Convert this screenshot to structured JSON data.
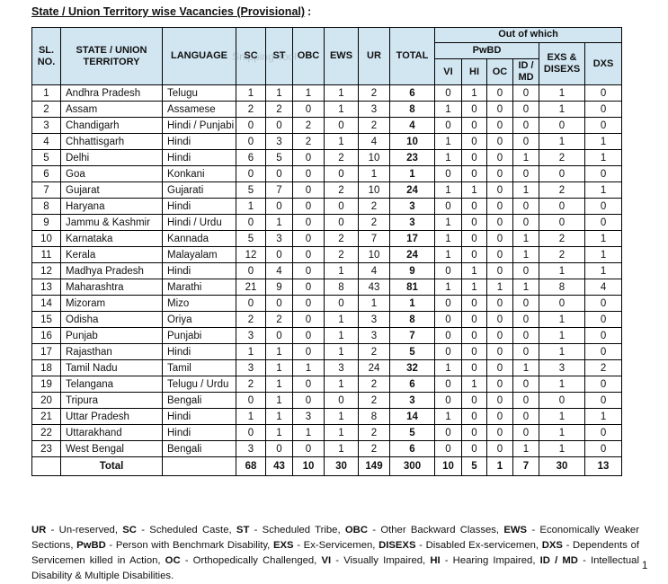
{
  "page": {
    "title": "State / Union Territory wise Vacancies (Provisional)",
    "title_suffix": ":",
    "page_number": "1",
    "watermark_text": "Snipping Tool"
  },
  "table": {
    "headers": {
      "sl_no": "SL. NO.",
      "state": "STATE / UNION TERRITORY",
      "language": "LANGUAGE",
      "sc": "SC",
      "st": "ST",
      "obc": "OBC",
      "ews": "EWS",
      "ur": "UR",
      "total": "TOTAL",
      "out_of_which": "Out of which",
      "pwbd": "PwBD",
      "vi": "VI",
      "hi": "HI",
      "oc": "OC",
      "id_md": "ID / MD",
      "exs_disexs": "EXS & DISEXS",
      "dxs": "DXS"
    },
    "rows": [
      [
        "1",
        "Andhra Pradesh",
        "Telugu",
        "1",
        "1",
        "1",
        "1",
        "2",
        "6",
        "0",
        "1",
        "0",
        "0",
        "1",
        "0"
      ],
      [
        "2",
        "Assam",
        "Assamese",
        "2",
        "2",
        "0",
        "1",
        "3",
        "8",
        "1",
        "0",
        "0",
        "0",
        "1",
        "0"
      ],
      [
        "3",
        "Chandigarh",
        "Hindi / Punjabi",
        "0",
        "0",
        "2",
        "0",
        "2",
        "4",
        "0",
        "0",
        "0",
        "0",
        "0",
        "0"
      ],
      [
        "4",
        "Chhattisgarh",
        "Hindi",
        "0",
        "3",
        "2",
        "1",
        "4",
        "10",
        "1",
        "0",
        "0",
        "0",
        "1",
        "1"
      ],
      [
        "5",
        "Delhi",
        "Hindi",
        "6",
        "5",
        "0",
        "2",
        "10",
        "23",
        "1",
        "0",
        "0",
        "1",
        "2",
        "1"
      ],
      [
        "6",
        "Goa",
        "Konkani",
        "0",
        "0",
        "0",
        "0",
        "1",
        "1",
        "0",
        "0",
        "0",
        "0",
        "0",
        "0"
      ],
      [
        "7",
        "Gujarat",
        "Gujarati",
        "5",
        "7",
        "0",
        "2",
        "10",
        "24",
        "1",
        "1",
        "0",
        "1",
        "2",
        "1"
      ],
      [
        "8",
        "Haryana",
        "Hindi",
        "1",
        "0",
        "0",
        "0",
        "2",
        "3",
        "0",
        "0",
        "0",
        "0",
        "0",
        "0"
      ],
      [
        "9",
        "Jammu & Kashmir",
        "Hindi / Urdu",
        "0",
        "1",
        "0",
        "0",
        "2",
        "3",
        "1",
        "0",
        "0",
        "0",
        "0",
        "0"
      ],
      [
        "10",
        "Karnataka",
        "Kannada",
        "5",
        "3",
        "0",
        "2",
        "7",
        "17",
        "1",
        "0",
        "0",
        "1",
        "2",
        "1"
      ],
      [
        "11",
        "Kerala",
        "Malayalam",
        "12",
        "0",
        "0",
        "2",
        "10",
        "24",
        "1",
        "0",
        "0",
        "1",
        "2",
        "1"
      ],
      [
        "12",
        "Madhya Pradesh",
        "Hindi",
        "0",
        "4",
        "0",
        "1",
        "4",
        "9",
        "0",
        "1",
        "0",
        "0",
        "1",
        "1"
      ],
      [
        "13",
        "Maharashtra",
        "Marathi",
        "21",
        "9",
        "0",
        "8",
        "43",
        "81",
        "1",
        "1",
        "1",
        "1",
        "8",
        "4"
      ],
      [
        "14",
        "Mizoram",
        "Mizo",
        "0",
        "0",
        "0",
        "0",
        "1",
        "1",
        "0",
        "0",
        "0",
        "0",
        "0",
        "0"
      ],
      [
        "15",
        "Odisha",
        "Oriya",
        "2",
        "2",
        "0",
        "1",
        "3",
        "8",
        "0",
        "0",
        "0",
        "0",
        "1",
        "0"
      ],
      [
        "16",
        "Punjab",
        "Punjabi",
        "3",
        "0",
        "0",
        "1",
        "3",
        "7",
        "0",
        "0",
        "0",
        "0",
        "1",
        "0"
      ],
      [
        "17",
        "Rajasthan",
        "Hindi",
        "1",
        "1",
        "0",
        "1",
        "2",
        "5",
        "0",
        "0",
        "0",
        "0",
        "1",
        "0"
      ],
      [
        "18",
        "Tamil Nadu",
        "Tamil",
        "3",
        "1",
        "1",
        "3",
        "24",
        "32",
        "1",
        "0",
        "0",
        "1",
        "3",
        "2"
      ],
      [
        "19",
        "Telangana",
        "Telugu / Urdu",
        "2",
        "1",
        "0",
        "1",
        "2",
        "6",
        "0",
        "1",
        "0",
        "0",
        "1",
        "0"
      ],
      [
        "20",
        "Tripura",
        "Bengali",
        "0",
        "1",
        "0",
        "0",
        "2",
        "3",
        "0",
        "0",
        "0",
        "0",
        "0",
        "0"
      ],
      [
        "21",
        "Uttar Pradesh",
        "Hindi",
        "1",
        "1",
        "3",
        "1",
        "8",
        "14",
        "1",
        "0",
        "0",
        "0",
        "1",
        "1"
      ],
      [
        "22",
        "Uttarakhand",
        "Hindi",
        "0",
        "1",
        "1",
        "1",
        "2",
        "5",
        "0",
        "0",
        "0",
        "0",
        "1",
        "0"
      ],
      [
        "23",
        "West Bengal",
        "Bengali",
        "3",
        "0",
        "0",
        "1",
        "2",
        "6",
        "0",
        "0",
        "0",
        "1",
        "1",
        "0"
      ]
    ],
    "total_row": {
      "label": "Total",
      "values": [
        "68",
        "43",
        "10",
        "30",
        "149",
        "300",
        "10",
        "5",
        "1",
        "7",
        "30",
        "13"
      ]
    }
  },
  "legend": {
    "entries": [
      {
        "abbr": "UR",
        "desc": "Un-reserved"
      },
      {
        "abbr": "SC",
        "desc": "Scheduled Caste"
      },
      {
        "abbr": "ST",
        "desc": "Scheduled Tribe"
      },
      {
        "abbr": "OBC",
        "desc": "Other Backward Classes"
      },
      {
        "abbr": "EWS",
        "desc": "Economically Weaker Sections"
      },
      {
        "abbr": "PwBD",
        "desc": "Person with Benchmark Disability"
      },
      {
        "abbr": "EXS",
        "desc": "Ex-Servicemen"
      },
      {
        "abbr": "DISEXS",
        "desc": "Disabled Ex-servicemen"
      },
      {
        "abbr": "DXS",
        "desc": "Dependents of Servicemen killed in Action"
      },
      {
        "abbr": "OC",
        "desc": "Orthopedically Challenged"
      },
      {
        "abbr": "VI",
        "desc": "Visually Impaired"
      },
      {
        "abbr": "HI",
        "desc": "Hearing Impaired"
      },
      {
        "abbr": "ID / MD",
        "desc": "Intellectual Disability & Multiple Disabilities"
      }
    ]
  },
  "colors": {
    "header_bg": "#d2e6f2",
    "border": "#000000",
    "text": "#111111",
    "watermark": "#6b7a85"
  }
}
